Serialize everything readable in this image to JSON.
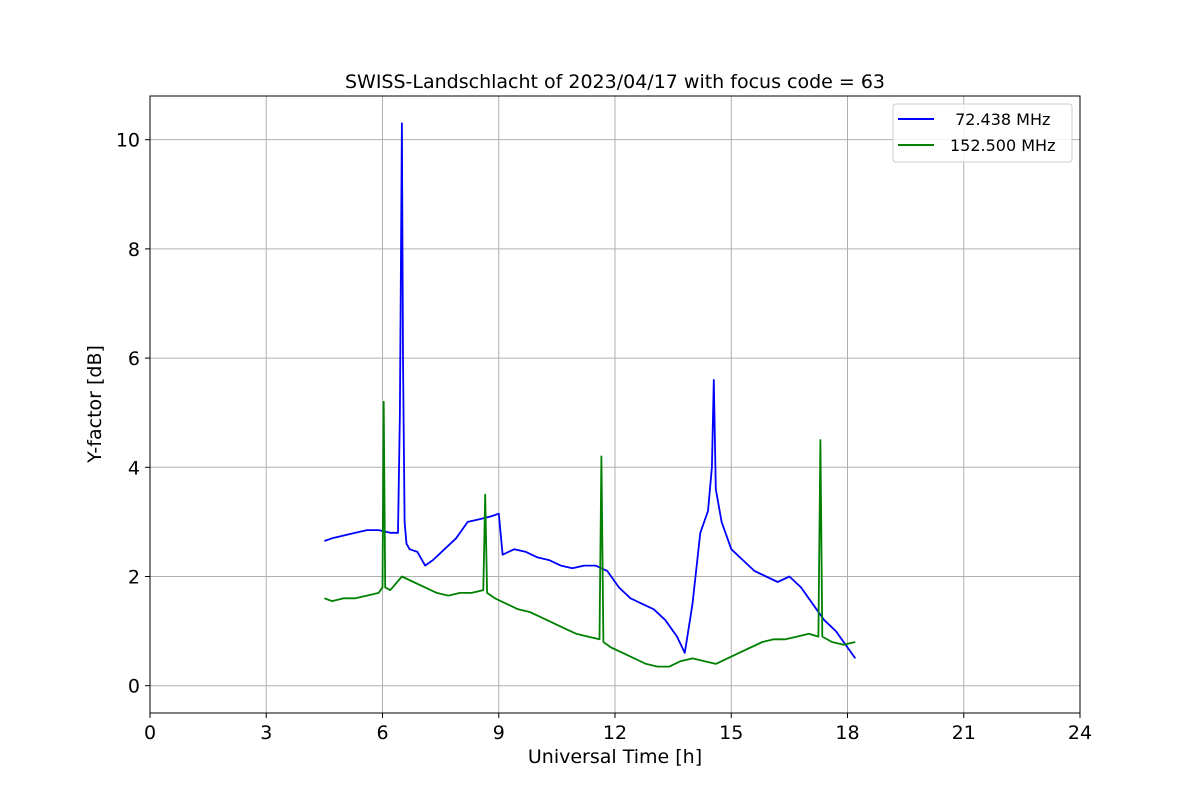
{
  "chart_data": {
    "type": "line",
    "title": "SWISS-Landschlacht of 2023/04/17 with focus code = 63",
    "xlabel": "Universal Time [h]",
    "ylabel": "Y-factor [dB]",
    "xlim": [
      0,
      24
    ],
    "ylim": [
      -0.5,
      10.8
    ],
    "xticks": [
      0,
      3,
      6,
      9,
      12,
      15,
      18,
      21,
      24
    ],
    "yticks": [
      0,
      2,
      4,
      6,
      8,
      10
    ],
    "grid": true,
    "legend_position": "top-right",
    "series": [
      {
        "name": " 72.438 MHz",
        "color": "#0000ff",
        "x": [
          4.5,
          4.7,
          5.0,
          5.3,
          5.6,
          5.9,
          6.2,
          6.4,
          6.45,
          6.5,
          6.53,
          6.57,
          6.62,
          6.7,
          6.9,
          7.1,
          7.3,
          7.6,
          7.9,
          8.2,
          8.5,
          8.8,
          9.0,
          9.1,
          9.4,
          9.7,
          10.0,
          10.3,
          10.6,
          10.9,
          11.2,
          11.5,
          11.8,
          12.1,
          12.4,
          12.7,
          13.0,
          13.3,
          13.6,
          13.8,
          14.0,
          14.2,
          14.4,
          14.5,
          14.55,
          14.6,
          14.75,
          15.0,
          15.3,
          15.6,
          15.9,
          16.2,
          16.5,
          16.8,
          17.1,
          17.4,
          17.7,
          17.9,
          18.1,
          18.2
        ],
        "y": [
          2.65,
          2.7,
          2.75,
          2.8,
          2.85,
          2.85,
          2.8,
          2.8,
          5.0,
          10.3,
          6.0,
          3.0,
          2.6,
          2.5,
          2.45,
          2.2,
          2.3,
          2.5,
          2.7,
          3.0,
          3.05,
          3.1,
          3.15,
          2.4,
          2.5,
          2.45,
          2.35,
          2.3,
          2.2,
          2.15,
          2.2,
          2.2,
          2.1,
          1.8,
          1.6,
          1.5,
          1.4,
          1.2,
          0.9,
          0.6,
          1.5,
          2.8,
          3.2,
          4.0,
          5.6,
          3.6,
          3.0,
          2.5,
          2.3,
          2.1,
          2.0,
          1.9,
          2.0,
          1.8,
          1.5,
          1.2,
          1.0,
          0.8,
          0.6,
          0.5
        ]
      },
      {
        "name": "152.500 MHz",
        "color": "#008000",
        "x": [
          4.5,
          4.7,
          5.0,
          5.3,
          5.6,
          5.9,
          6.0,
          6.03,
          6.07,
          6.2,
          6.5,
          6.8,
          7.1,
          7.4,
          7.7,
          8.0,
          8.3,
          8.6,
          8.65,
          8.7,
          8.9,
          9.2,
          9.5,
          9.8,
          10.1,
          10.4,
          10.7,
          11.0,
          11.3,
          11.6,
          11.65,
          11.7,
          11.9,
          12.2,
          12.5,
          12.8,
          13.1,
          13.4,
          13.7,
          14.0,
          14.3,
          14.6,
          14.9,
          15.2,
          15.5,
          15.8,
          16.1,
          16.4,
          16.7,
          17.0,
          17.25,
          17.3,
          17.35,
          17.6,
          17.9,
          18.2
        ],
        "y": [
          1.6,
          1.55,
          1.6,
          1.6,
          1.65,
          1.7,
          1.8,
          5.2,
          1.8,
          1.75,
          2.0,
          1.9,
          1.8,
          1.7,
          1.65,
          1.7,
          1.7,
          1.75,
          3.5,
          1.7,
          1.6,
          1.5,
          1.4,
          1.35,
          1.25,
          1.15,
          1.05,
          0.95,
          0.9,
          0.85,
          4.2,
          0.8,
          0.7,
          0.6,
          0.5,
          0.4,
          0.35,
          0.35,
          0.45,
          0.5,
          0.45,
          0.4,
          0.5,
          0.6,
          0.7,
          0.8,
          0.85,
          0.85,
          0.9,
          0.95,
          0.9,
          4.5,
          0.9,
          0.8,
          0.75,
          0.8
        ]
      }
    ]
  }
}
